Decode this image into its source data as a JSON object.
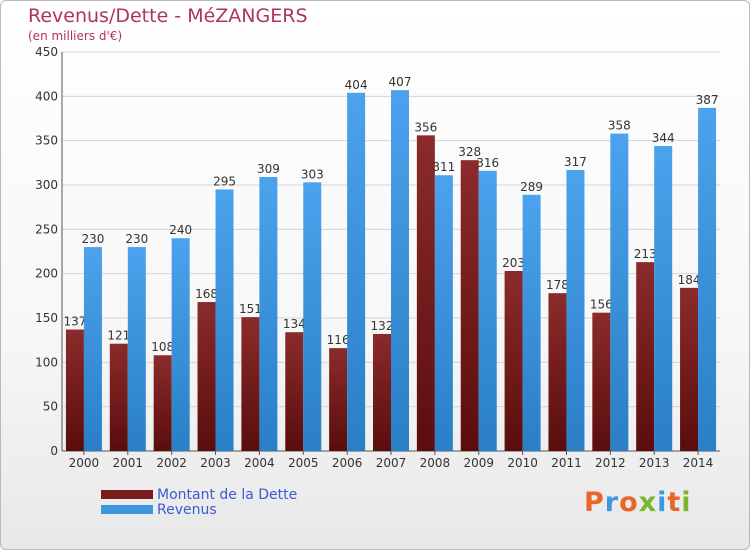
{
  "header": {
    "title": "Revenus/Dette - MéZANGERS",
    "subtitle": "(en milliers d'€)"
  },
  "colors": {
    "dette": "#7a1c1c",
    "revenus": "#3d97e0",
    "title": "#b0335b",
    "legend_text": "#3a5bd6"
  },
  "legend": [
    {
      "label": "Montant de la Dette",
      "color": "#7a1c1c"
    },
    {
      "label": "Revenus",
      "color": "#3d97e0"
    }
  ],
  "logo": {
    "letters": [
      {
        "ch": "P",
        "color": "#e8662a"
      },
      {
        "ch": "r",
        "color": "#3d97e0"
      },
      {
        "ch": "o",
        "color": "#e8662a"
      },
      {
        "ch": "x",
        "color": "#7ab52b"
      },
      {
        "ch": "i",
        "color": "#3d97e0"
      },
      {
        "ch": "t",
        "color": "#e8662a"
      },
      {
        "ch": "i",
        "color": "#7ab52b"
      }
    ]
  },
  "chart_data": {
    "type": "bar",
    "title": "Revenus/Dette - MéZANGERS",
    "subtitle": "(en milliers d'€)",
    "categories": [
      "2000",
      "2001",
      "2002",
      "2003",
      "2004",
      "2005",
      "2006",
      "2007",
      "2008",
      "2009",
      "2010",
      "2011",
      "2012",
      "2013",
      "2014"
    ],
    "series": [
      {
        "name": "Montant de la Dette",
        "values": [
          137,
          121,
          108,
          168,
          151,
          134,
          116,
          132,
          356,
          328,
          203,
          178,
          156,
          213,
          184
        ],
        "labels": [
          "137",
          "121",
          "108",
          "168",
          "151",
          "134",
          "116",
          "132",
          "356",
          "328",
          "203",
          "178",
          "156",
          "213",
          "184"
        ]
      },
      {
        "name": "Revenus",
        "values": [
          230,
          230,
          240,
          295,
          309,
          303,
          404,
          407,
          311,
          316,
          289,
          317,
          358,
          344,
          387
        ],
        "labels": [
          "230",
          "230",
          "240",
          "295",
          "309",
          "303",
          "404",
          "407",
          "311",
          "316",
          "289",
          "317",
          "358",
          "344",
          "387"
        ]
      }
    ],
    "yticks": [
      "0",
      "50",
      "100",
      "150",
      "200",
      "250",
      "300",
      "350",
      "400",
      "450"
    ],
    "ylim": [
      0,
      450
    ],
    "grid": true,
    "legend_position": "bottom-left"
  }
}
